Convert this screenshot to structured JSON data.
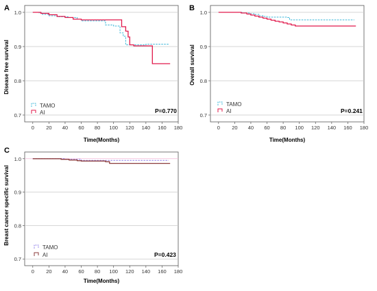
{
  "colors": {
    "tamo": "#38b6d8",
    "ai": "#e0174a",
    "tamo_c": "#8f7fe8",
    "ai_c": "#8b3b3b",
    "grid": "#c9c9c9",
    "axis": "#555555",
    "refline": "#f2b6d6"
  },
  "chart_data": [
    {
      "type": "line",
      "panel_label": "A",
      "title": "",
      "xlabel": "Time(Months)",
      "ylabel": "Disease free survival",
      "xlim": [
        -10,
        180
      ],
      "ylim": [
        0.68,
        1.02
      ],
      "xticks": [
        "0",
        "20",
        "40",
        "60",
        "80",
        "100",
        "120",
        "140",
        "160",
        "180"
      ],
      "yticks": [
        "0.7",
        "0.8",
        "0.9",
        "1.0"
      ],
      "grid": "horizontal",
      "legend_placement": "bottom-left",
      "annotation": "P=0.770",
      "series": [
        {
          "name": "TAMO",
          "style": "dashed",
          "x": [
            0,
            8,
            12,
            20,
            30,
            45,
            55,
            60,
            70,
            80,
            90,
            100,
            108,
            112,
            115,
            118,
            125,
            140,
            150,
            168
          ],
          "y": [
            1.0,
            0.998,
            0.994,
            0.99,
            0.987,
            0.985,
            0.98,
            0.975,
            0.975,
            0.975,
            0.963,
            0.96,
            0.94,
            0.93,
            0.905,
            0.905,
            0.905,
            0.907,
            0.907,
            0.907
          ]
        },
        {
          "name": "AI",
          "style": "solid",
          "x": [
            0,
            10,
            20,
            30,
            40,
            50,
            60,
            80,
            100,
            110,
            115,
            118,
            120,
            125,
            148,
            158,
            170
          ],
          "y": [
            1.0,
            0.997,
            0.993,
            0.988,
            0.985,
            0.98,
            0.978,
            0.978,
            0.978,
            0.958,
            0.945,
            0.928,
            0.905,
            0.902,
            0.85,
            0.85,
            0.85
          ]
        }
      ]
    },
    {
      "type": "line",
      "panel_label": "B",
      "title": "",
      "xlabel": "Time(Months)",
      "ylabel": "Overall survival",
      "xlim": [
        -10,
        180
      ],
      "ylim": [
        0.68,
        1.02
      ],
      "xticks": [
        "0",
        "20",
        "40",
        "60",
        "80",
        "100",
        "120",
        "140",
        "160",
        "180"
      ],
      "yticks": [
        "0.7",
        "0.8",
        "0.9",
        "1.0"
      ],
      "grid": "horizontal",
      "legend_placement": "bottom-left",
      "annotation": "P=0.241",
      "series": [
        {
          "name": "TAMO",
          "style": "dashed",
          "x": [
            0,
            25,
            30,
            38,
            45,
            50,
            55,
            60,
            70,
            85,
            88,
            100,
            120,
            140,
            168
          ],
          "y": [
            1.0,
            1.0,
            0.998,
            0.996,
            0.994,
            0.99,
            0.988,
            0.986,
            0.986,
            0.985,
            0.978,
            0.978,
            0.978,
            0.978,
            0.978
          ]
        },
        {
          "name": "AI",
          "style": "solid",
          "x": [
            0,
            20,
            28,
            35,
            40,
            45,
            50,
            55,
            60,
            65,
            70,
            75,
            80,
            85,
            90,
            95,
            100,
            120,
            140,
            170
          ],
          "y": [
            1.0,
            1.0,
            0.998,
            0.995,
            0.992,
            0.989,
            0.986,
            0.983,
            0.98,
            0.977,
            0.974,
            0.972,
            0.969,
            0.966,
            0.963,
            0.96,
            0.96,
            0.96,
            0.96,
            0.96
          ]
        }
      ]
    },
    {
      "type": "line",
      "panel_label": "C",
      "title": "",
      "xlabel": "Time(Months)",
      "ylabel": "Breast cancer specific survival",
      "xlim": [
        -10,
        180
      ],
      "ylim": [
        0.68,
        1.02
      ],
      "xticks": [
        "0",
        "20",
        "40",
        "60",
        "80",
        "100",
        "120",
        "140",
        "160",
        "180"
      ],
      "yticks": [
        "0.7",
        "0.8",
        "0.9",
        "1.0"
      ],
      "grid": "horizontal",
      "legend_placement": "bottom-left",
      "annotation": "P=0.423",
      "series": [
        {
          "name": "TAMO",
          "style": "dashed",
          "x": [
            0,
            30,
            40,
            60,
            100,
            140,
            168
          ],
          "y": [
            1.0,
            1.0,
            0.998,
            0.995,
            0.995,
            0.995,
            0.995
          ]
        },
        {
          "name": "AI",
          "style": "solid",
          "x": [
            0,
            30,
            35,
            45,
            55,
            60,
            90,
            95,
            120,
            140,
            170
          ],
          "y": [
            1.0,
            1.0,
            0.998,
            0.996,
            0.994,
            0.993,
            0.991,
            0.986,
            0.986,
            0.986,
            0.986
          ]
        }
      ]
    }
  ]
}
